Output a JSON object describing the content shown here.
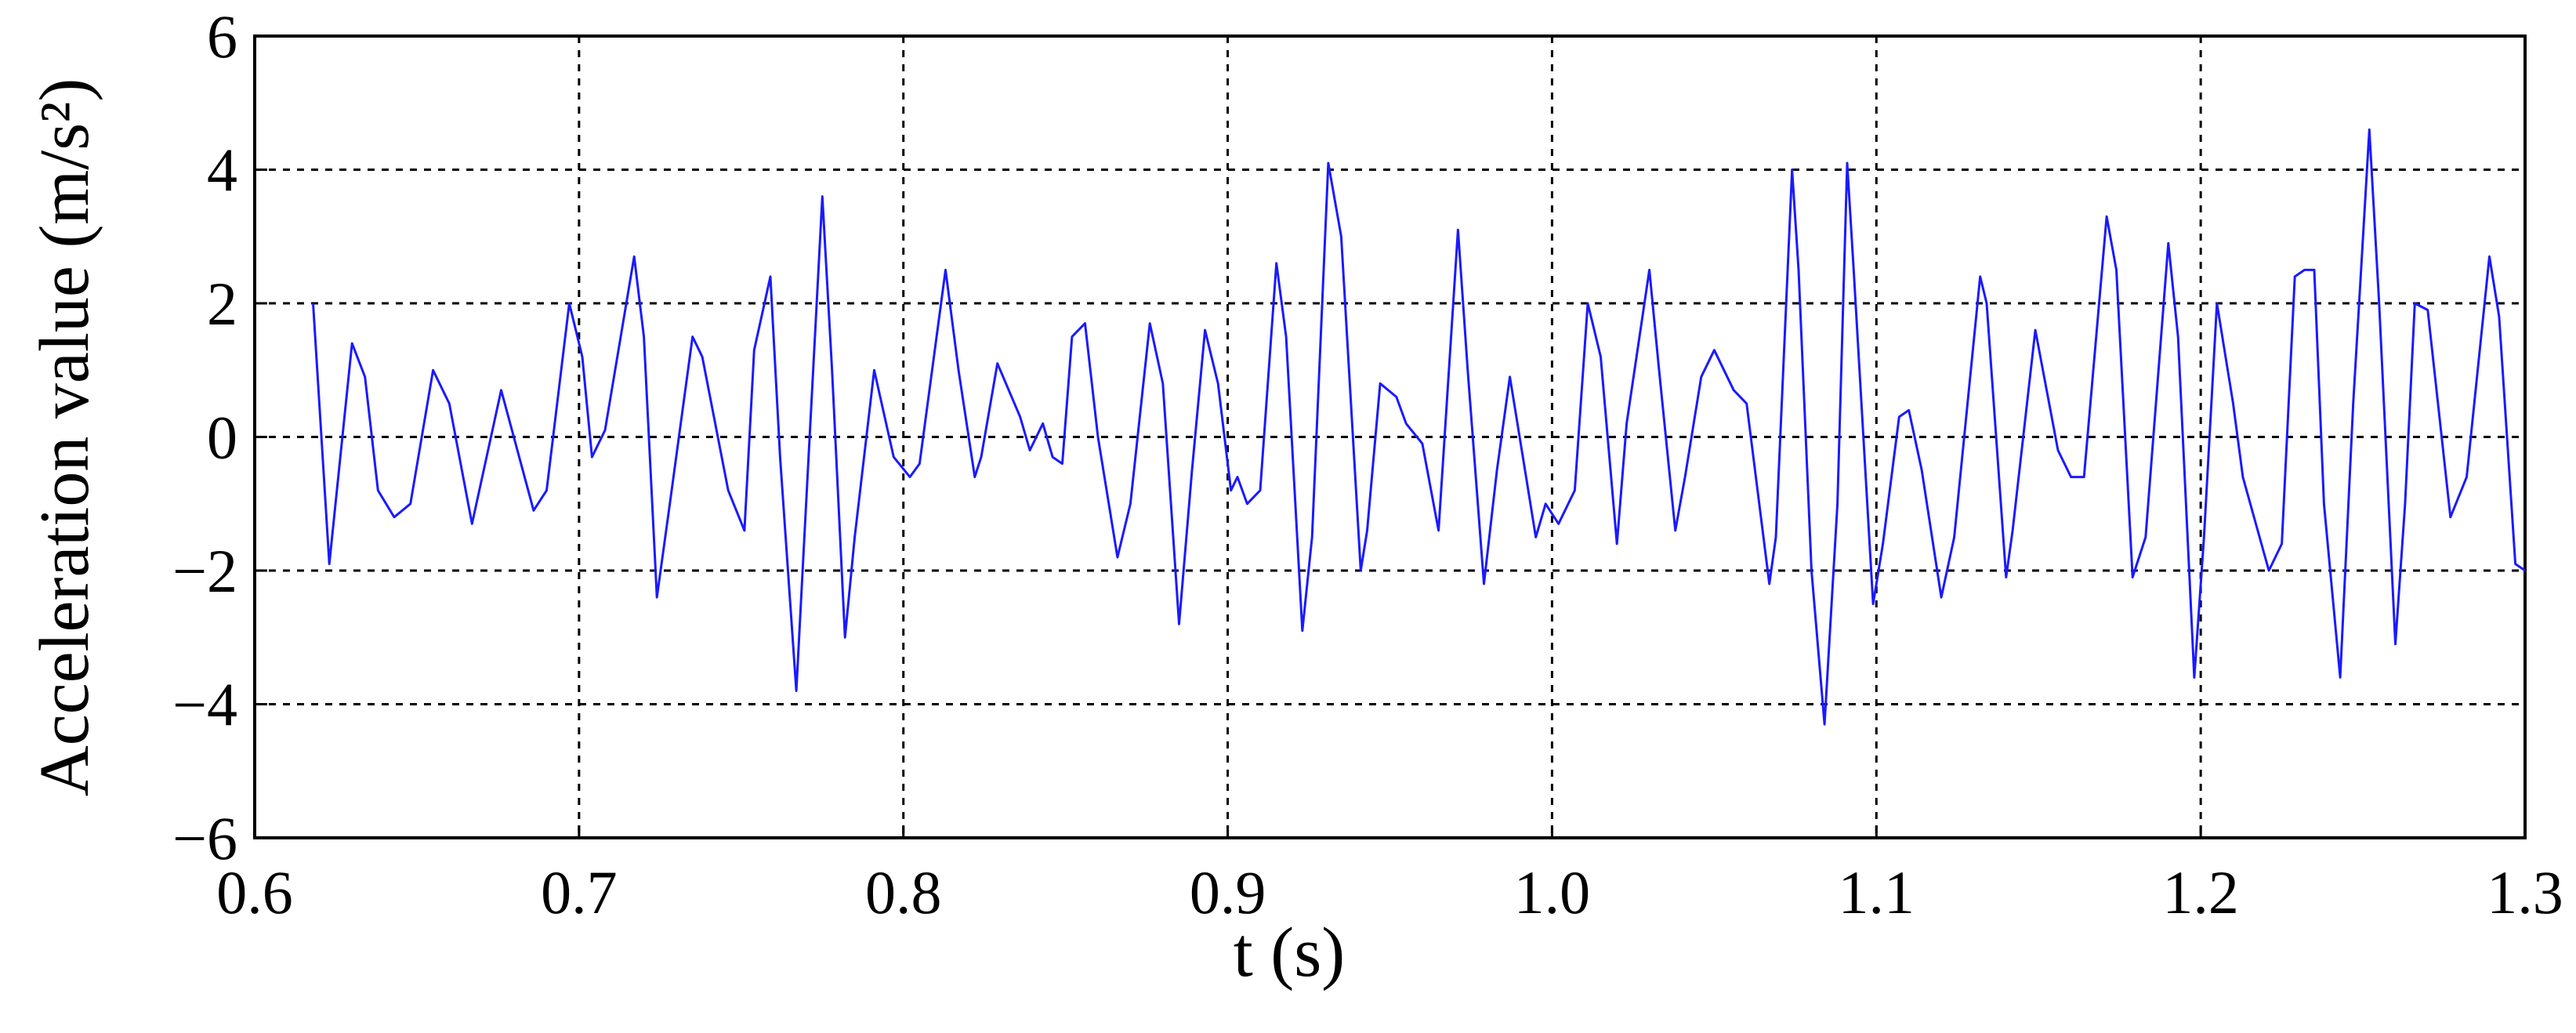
{
  "chart_data": {
    "type": "line",
    "x_label": "t (s)",
    "y_label": "Acceleration value (m/s²)",
    "color": "#1a1aff",
    "grid": true,
    "xlim": [
      0.6,
      1.3
    ],
    "xticks": [
      0.6,
      0.7,
      0.8,
      0.9,
      {
        "value": 1,
        "label": "1.0"
      },
      1.1,
      1.2,
      1.3
    ],
    "ylim": [
      -6,
      6
    ],
    "yticks": [
      {
        "value": -6,
        "label": "−6"
      },
      {
        "value": -4,
        "label": "−4"
      },
      {
        "value": -2,
        "label": "−2"
      },
      0,
      2,
      4,
      6
    ],
    "x": [
      0.618,
      0.623,
      0.63,
      0.634,
      0.638,
      0.643,
      0.648,
      0.655,
      0.66,
      0.667,
      0.676,
      0.686,
      0.69,
      0.697,
      0.701,
      0.704,
      0.708,
      0.717,
      0.72,
      0.724,
      0.728,
      0.735,
      0.738,
      0.746,
      0.751,
      0.754,
      0.759,
      0.762,
      0.767,
      0.77,
      0.775,
      0.778,
      0.782,
      0.785,
      0.791,
      0.797,
      0.802,
      0.805,
      0.813,
      0.817,
      0.822,
      0.824,
      0.829,
      0.836,
      0.839,
      0.843,
      0.846,
      0.849,
      0.852,
      0.856,
      0.86,
      0.866,
      0.87,
      0.876,
      0.88,
      0.885,
      0.889,
      0.893,
      0.897,
      0.901,
      0.903,
      0.906,
      0.91,
      0.915,
      0.918,
      0.923,
      0.926,
      0.931,
      0.935,
      0.941,
      0.943,
      0.947,
      0.952,
      0.955,
      0.96,
      0.965,
      0.971,
      0.974,
      0.979,
      0.983,
      0.987,
      0.991,
      0.995,
      0.998,
      1.002,
      1.007,
      1.011,
      1.015,
      1.02,
      1.023,
      1.03,
      1.033,
      1.038,
      1.041,
      1.046,
      1.05,
      1.056,
      1.06,
      1.067,
      1.069,
      1.074,
      1.076,
      1.08,
      1.084,
      1.088,
      1.091,
      1.093,
      1.099,
      1.102,
      1.107,
      1.11,
      1.114,
      1.12,
      1.124,
      1.132,
      1.134,
      1.14,
      1.142,
      1.149,
      1.156,
      1.16,
      1.164,
      1.171,
      1.174,
      1.179,
      1.183,
      1.19,
      1.193,
      1.198,
      1.201,
      1.205,
      1.21,
      1.213,
      1.221,
      1.225,
      1.229,
      1.232,
      1.235,
      1.238,
      1.243,
      1.247,
      1.252,
      1.255,
      1.26,
      1.263,
      1.266,
      1.27,
      1.277,
      1.282,
      1.289,
      1.292,
      1.297,
      1.3
    ],
    "values": [
      2.0,
      -1.9,
      1.4,
      0.9,
      -0.8,
      -1.2,
      -1.0,
      1.0,
      0.5,
      -1.3,
      0.7,
      -1.1,
      -0.8,
      2.0,
      1.2,
      -0.3,
      0.1,
      2.7,
      1.5,
      -2.4,
      -1.0,
      1.5,
      1.2,
      -0.8,
      -1.4,
      1.3,
      2.4,
      -0.3,
      -3.8,
      -1.0,
      3.6,
      1.0,
      -3.0,
      -1.5,
      1.0,
      -0.3,
      -0.6,
      -0.4,
      2.5,
      1.0,
      -0.6,
      -0.3,
      1.1,
      0.3,
      -0.2,
      0.2,
      -0.3,
      -0.4,
      1.5,
      1.7,
      0.0,
      -1.8,
      -1.0,
      1.7,
      0.8,
      -2.8,
      -0.5,
      1.6,
      0.8,
      -0.8,
      -0.6,
      -1.0,
      -0.8,
      2.6,
      1.5,
      -2.9,
      -1.5,
      4.1,
      3.0,
      -2.0,
      -1.4,
      0.8,
      0.6,
      0.2,
      -0.1,
      -1.4,
      3.1,
      1.0,
      -2.2,
      -0.5,
      0.9,
      -0.3,
      -1.5,
      -1.0,
      -1.3,
      -0.8,
      2.0,
      1.2,
      -1.6,
      0.2,
      2.5,
      1.0,
      -1.4,
      -0.6,
      0.9,
      1.3,
      0.7,
      0.5,
      -2.2,
      -1.5,
      4.0,
      2.5,
      -2.0,
      -4.3,
      -1.0,
      4.1,
      2.5,
      -2.5,
      -1.6,
      0.3,
      0.4,
      -0.5,
      -2.4,
      -1.5,
      2.4,
      2.0,
      -2.1,
      -1.4,
      1.6,
      -0.2,
      -0.6,
      -0.6,
      3.3,
      2.5,
      -2.1,
      -1.5,
      2.9,
      1.5,
      -3.6,
      -1.5,
      2.0,
      0.5,
      -0.6,
      -2.0,
      -1.6,
      2.4,
      2.5,
      2.5,
      -1.0,
      -3.6,
      0.5,
      4.6,
      2.0,
      -3.1,
      -1.0,
      2.0,
      1.9,
      -1.2,
      -0.6,
      2.7,
      1.8,
      -1.9,
      -2.0
    ]
  }
}
